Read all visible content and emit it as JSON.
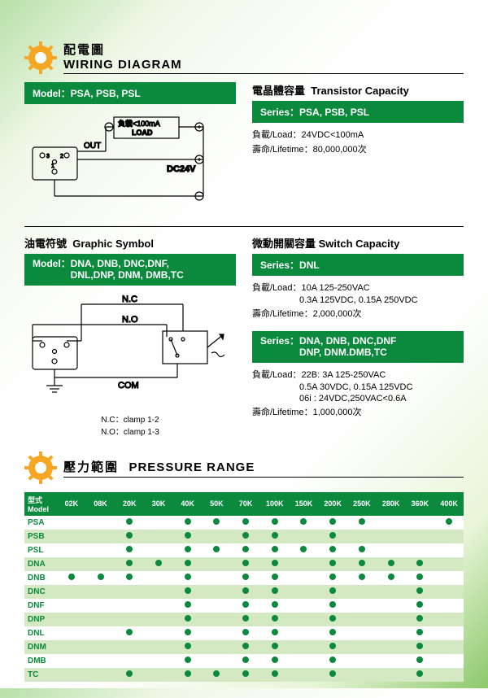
{
  "section1": {
    "title_cn": "配電圖",
    "title_en": "WIRING DIAGRAM",
    "left": {
      "bar_label": "Model：",
      "bar_value": "PSA, PSB, PSL",
      "diagram": {
        "out": "OUT",
        "load_line1": "負載<100mA",
        "load_line2": "LOAD",
        "dc24v": "DC24V"
      }
    },
    "right": {
      "subhead_cn": "電晶體容量",
      "subhead_en": "Transistor Capacity",
      "bar_label": "Series：",
      "bar_value": "PSA, PSB, PSL",
      "load_label": "負載/Load：",
      "load_value": "24VDC<100mA",
      "life_label": "壽命/Lifetime：",
      "life_value": "80,000,000次"
    }
  },
  "section2": {
    "left": {
      "subhead_cn": "油電符號",
      "subhead_en": "Graphic Symbol",
      "bar_label": "Model：",
      "bar_value1": "DNA, DNB, DNC,DNF,",
      "bar_value2": "DNL,DNP, DNM, DMB,TC",
      "diagram": {
        "nc": "N.C",
        "no": "N.O",
        "com": "COM"
      },
      "note1": "N.C：clamp 1-2",
      "note2": "N.O：clamp 1-3"
    },
    "right": {
      "sub1_cn": "微動開關容量",
      "sub1_en": "Switch Capacity",
      "bar1_label": "Series：",
      "bar1_value": "DNL",
      "spec1_load_label": "負載/Load：",
      "spec1_load_line1": "10A  125-250VAC",
      "spec1_load_line2": "0.3A  125VDC, 0.15A  250VDC",
      "spec1_life_label": "壽命/Lifetime：",
      "spec1_life_value": "2,000,000次",
      "bar2_label": "Series：",
      "bar2_value1": "DNA, DNB, DNC,DNF",
      "bar2_value2": "DNP, DNM.DMB,TC",
      "spec2_load_label": "負載/Load：",
      "spec2_load_line1": "22B: 3A 125-250VAC",
      "spec2_load_line2": "0.5A 30VDC, 0.15A 125VDC",
      "spec2_load_line3": "06i : 24VDC,250VAC<0.6A",
      "spec2_life_label": "壽命/Lifetime：",
      "spec2_life_value": "1,000,000次"
    }
  },
  "section3": {
    "title_cn": "壓力範圍",
    "title_en": "PRESSURE RANGE",
    "header_model": "型式\nModel",
    "columns": [
      "02K",
      "08K",
      "20K",
      "30K",
      "40K",
      "50K",
      "70K",
      "100K",
      "150K",
      "200K",
      "250K",
      "280K",
      "360K",
      "400K"
    ],
    "rows": [
      {
        "model": "PSA",
        "cells": [
          0,
          0,
          1,
          0,
          1,
          1,
          1,
          1,
          1,
          1,
          1,
          0,
          0,
          1
        ]
      },
      {
        "model": "PSB",
        "cells": [
          0,
          0,
          1,
          0,
          1,
          0,
          1,
          1,
          0,
          1,
          0,
          0,
          0,
          0
        ]
      },
      {
        "model": "PSL",
        "cells": [
          0,
          0,
          1,
          0,
          1,
          1,
          1,
          1,
          1,
          1,
          1,
          0,
          0,
          0
        ]
      },
      {
        "model": "DNA",
        "cells": [
          0,
          0,
          1,
          1,
          1,
          0,
          1,
          1,
          0,
          1,
          1,
          1,
          1,
          0
        ]
      },
      {
        "model": "DNB",
        "cells": [
          1,
          1,
          1,
          0,
          1,
          0,
          1,
          1,
          0,
          1,
          1,
          1,
          1,
          0
        ]
      },
      {
        "model": "DNC",
        "cells": [
          0,
          0,
          0,
          0,
          1,
          0,
          1,
          1,
          0,
          1,
          0,
          0,
          1,
          0
        ]
      },
      {
        "model": "DNF",
        "cells": [
          0,
          0,
          0,
          0,
          1,
          0,
          1,
          1,
          0,
          1,
          0,
          0,
          1,
          0
        ]
      },
      {
        "model": "DNP",
        "cells": [
          0,
          0,
          0,
          0,
          1,
          0,
          1,
          1,
          0,
          1,
          0,
          0,
          1,
          0
        ]
      },
      {
        "model": "DNL",
        "cells": [
          0,
          0,
          1,
          0,
          1,
          0,
          1,
          1,
          0,
          1,
          0,
          0,
          1,
          0
        ]
      },
      {
        "model": "DNM",
        "cells": [
          0,
          0,
          0,
          0,
          1,
          0,
          1,
          1,
          0,
          1,
          0,
          0,
          1,
          0
        ]
      },
      {
        "model": "DMB",
        "cells": [
          0,
          0,
          0,
          0,
          1,
          0,
          1,
          1,
          0,
          1,
          0,
          0,
          1,
          0
        ]
      },
      {
        "model": "TC",
        "cells": [
          0,
          0,
          1,
          0,
          1,
          1,
          1,
          1,
          0,
          1,
          0,
          0,
          1,
          0
        ]
      }
    ]
  },
  "colors": {
    "green": "#0b8a3e",
    "orange": "#f5a623",
    "light_green_row": "#d4e8c4"
  }
}
